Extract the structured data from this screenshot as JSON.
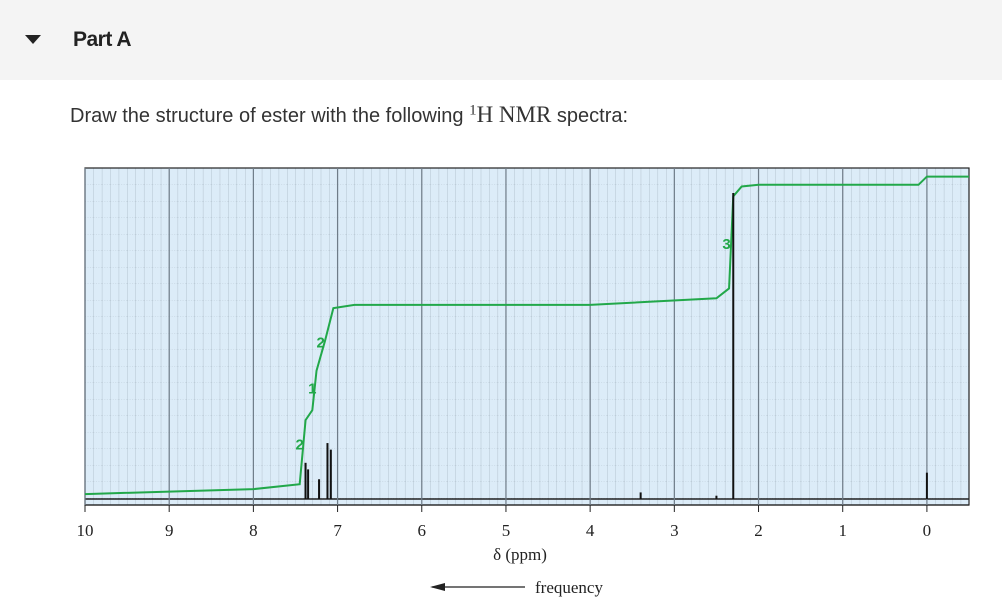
{
  "header": {
    "title": "Part A"
  },
  "prompt": {
    "before": "Draw the structure of ester with the following ",
    "sup": "1",
    "nmr": "H NMR",
    "after": " spectra:"
  },
  "spectrum": {
    "type": "line",
    "xlabel": "δ (ppm)",
    "direction_label": "frequency",
    "xlim": [
      10,
      -0.5
    ],
    "ylim": [
      0,
      100
    ],
    "xticks": [
      10,
      9,
      8,
      7,
      6,
      5,
      4,
      3,
      2,
      1,
      0
    ],
    "grid": true,
    "peaks": {
      "x": [
        7.38,
        7.35,
        7.22,
        7.12,
        7.08,
        3.4,
        2.5,
        2.3,
        0
      ],
      "values": [
        11,
        9,
        6,
        17,
        15,
        2,
        1,
        93,
        8
      ],
      "color": "#111111"
    },
    "integration": {
      "x": [
        10,
        8,
        7.45,
        7.38,
        7.3,
        7.25,
        7.15,
        7.05,
        6.8,
        4,
        2.5,
        2.35,
        2.3,
        2.2,
        2,
        0.1,
        0,
        -0.5
      ],
      "values": [
        1.5,
        3,
        4.5,
        24,
        27,
        39,
        48,
        58,
        59,
        59,
        61,
        64,
        92,
        95,
        95.5,
        95.5,
        98,
        98
      ],
      "color": "#22a84a"
    },
    "integrals": {
      "x": [
        7.45,
        7.3,
        7.2,
        2.38
      ],
      "y": [
        15,
        32,
        46,
        76
      ],
      "values": [
        2,
        1,
        2,
        3
      ]
    }
  }
}
